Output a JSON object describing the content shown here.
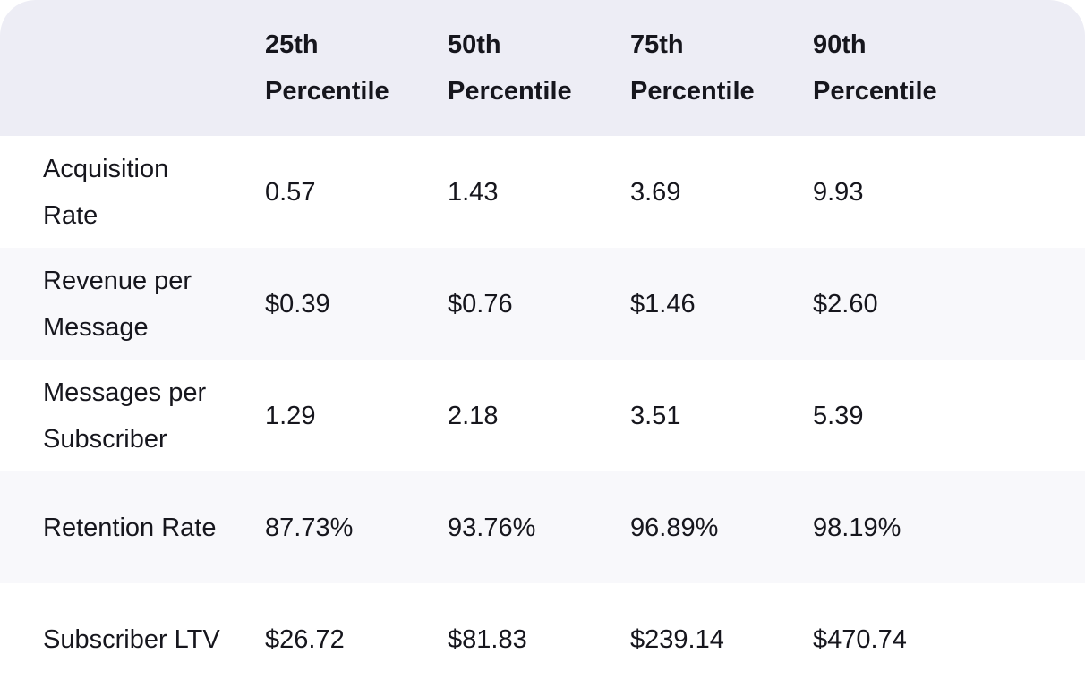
{
  "table": {
    "header": [
      "25th Percentile",
      "50th Percentile",
      "75th Percentile",
      "90th Percentile"
    ],
    "rows": [
      {
        "label": "Acquisition Rate",
        "values": [
          "0.57",
          "1.43",
          "3.69",
          "9.93"
        ]
      },
      {
        "label": "Revenue per Message",
        "values": [
          "$0.39",
          "$0.76",
          "$1.46",
          "$2.60"
        ]
      },
      {
        "label": "Messages per Subscriber",
        "values": [
          "1.29",
          "2.18",
          "3.51",
          "5.39"
        ]
      },
      {
        "label": "Retention Rate",
        "values": [
          "87.73%",
          "93.76%",
          "96.89%",
          "98.19%"
        ]
      },
      {
        "label": "Subscriber LTV",
        "values": [
          "$26.72",
          "$81.83",
          "$239.14",
          "$470.74"
        ]
      }
    ]
  }
}
